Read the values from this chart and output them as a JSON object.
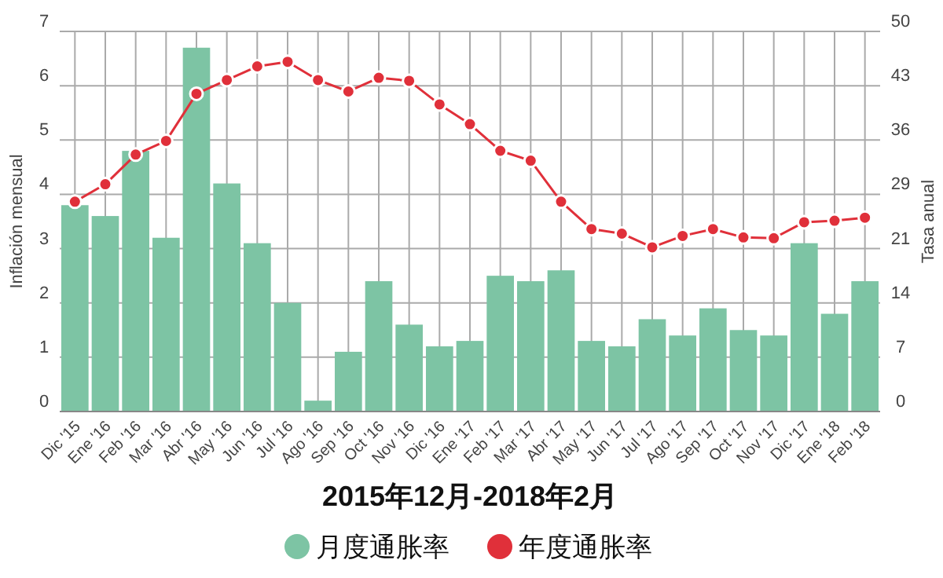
{
  "chart_data": {
    "type": "bar",
    "title": "2015年12月-2018年2月",
    "ylabel": "Inflación mensual",
    "y2label": "Tasa anual",
    "categories": [
      "Dic '15",
      "Ene '16",
      "Feb '16",
      "Mar '16",
      "Abr '16",
      "May '16",
      "Jun '16",
      "Jul '16",
      "Ago '16",
      "Sep '16",
      "Oct '16",
      "Nov '16",
      "Dic '16",
      "Ene '17",
      "Feb '17",
      "Mar '17",
      "Abr '17",
      "May '17",
      "Jun '17",
      "Jul '17",
      "Ago '17",
      "Sep '17",
      "Oct '17",
      "Nov '17",
      "Dic '17",
      "Ene '18",
      "Feb '18"
    ],
    "series": [
      {
        "name": "月度通胀率",
        "color": "#7dc4a4",
        "values": [
          3.8,
          3.6,
          4.8,
          3.2,
          6.7,
          4.2,
          3.1,
          2.0,
          0.2,
          1.1,
          2.4,
          1.6,
          1.2,
          1.3,
          2.5,
          2.4,
          2.6,
          1.3,
          1.2,
          1.7,
          1.4,
          1.9,
          1.5,
          1.4,
          3.1,
          1.8,
          2.4
        ]
      },
      {
        "name": "年度通胀率",
        "type": "line",
        "axis": "y2",
        "marker": "circle",
        "color": "#e0303a",
        "values": [
          27.6,
          29.9,
          33.8,
          35.6,
          41.8,
          43.6,
          45.4,
          46.0,
          43.6,
          42.1,
          43.9,
          43.5,
          40.4,
          37.8,
          34.3,
          33.0,
          27.6,
          24.0,
          23.4,
          21.6,
          23.1,
          24.0,
          22.9,
          22.8,
          24.9,
          25.1,
          25.5
        ]
      }
    ],
    "ylim": [
      0,
      7
    ],
    "yticks": [
      0,
      1,
      2,
      3,
      4,
      5,
      6,
      7
    ],
    "y2lim": [
      0,
      50
    ],
    "y2ticks": [
      0,
      {
        "value": 7.14,
        "label": "7"
      },
      {
        "value": 14.29,
        "label": "14"
      },
      {
        "value": 21.43,
        "label": "21"
      },
      {
        "value": 28.57,
        "label": "29"
      },
      {
        "value": 35.71,
        "label": "36"
      },
      {
        "value": 42.86,
        "label": "43"
      },
      50
    ],
    "grid": true,
    "legend": "bottom"
  }
}
